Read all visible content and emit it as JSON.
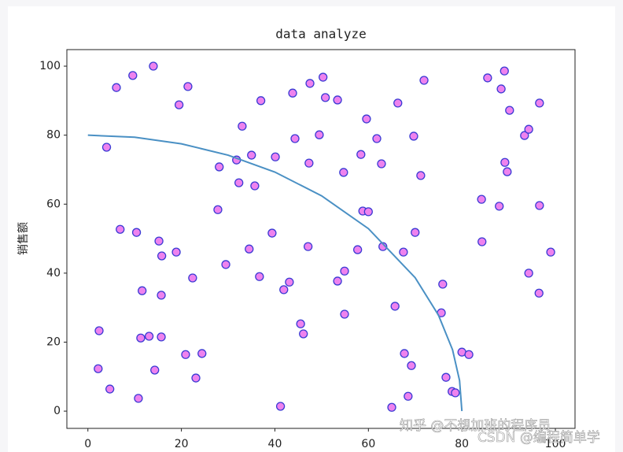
{
  "chart_data": {
    "type": "scatter",
    "title": "data analyze",
    "y_label": "销售额",
    "xlim": [
      -4.5,
      104.2
    ],
    "ylim": [
      -5,
      104.8
    ],
    "xticks": [
      0,
      20,
      40,
      60,
      80,
      100
    ],
    "yticks": [
      0,
      20,
      40,
      60,
      80,
      100
    ],
    "series": [
      {
        "type": "scatter",
        "color": "#ee82ee",
        "edgecolor": "#3b3bd4",
        "x": [
          2.2,
          2.4,
          4.0,
          4.7,
          6.1,
          6.9,
          9.6,
          10.4,
          10.8,
          11.3,
          11.6,
          13.1,
          14.0,
          14.3,
          15.2,
          15.7,
          15.8,
          15.7,
          18.9,
          19.5,
          20.9,
          21.4,
          22.4,
          23.1,
          24.4,
          27.8,
          28.1,
          29.5,
          31.8,
          32.3,
          33.0,
          34.5,
          35.0,
          35.7,
          36.7,
          37.0,
          39.4,
          40.1,
          41.2,
          41.9,
          43.1,
          43.8,
          44.3,
          45.5,
          46.1,
          47.3,
          47.1,
          47.5,
          49.5,
          50.3,
          50.8,
          53.4,
          53.4,
          54.7,
          54.9,
          54.9,
          57.7,
          58.4,
          58.8,
          59.6,
          60.0,
          61.8,
          62.8,
          63.1,
          65.0,
          65.7,
          66.3,
          67.5,
          67.7,
          68.5,
          69.2,
          69.7,
          70.0,
          71.2,
          71.9,
          75.6,
          75.9,
          76.6,
          77.9,
          78.6,
          80.0,
          81.5,
          84.2,
          84.3,
          85.5,
          88.0,
          88.4,
          89.1,
          89.2,
          89.7,
          90.2,
          93.4,
          94.3,
          94.3,
          96.5,
          96.6,
          96.6,
          99.0
        ],
        "values": [
          12.3,
          23.3,
          76.5,
          6.4,
          93.8,
          52.7,
          97.3,
          51.8,
          3.7,
          21.2,
          34.9,
          21.7,
          100,
          11.9,
          49.3,
          21.5,
          45.0,
          33.6,
          46.1,
          88.8,
          16.4,
          94.1,
          38.6,
          9.6,
          16.7,
          58.4,
          70.8,
          42.5,
          72.8,
          66.2,
          82.6,
          47.0,
          74.2,
          65.3,
          39.0,
          90.0,
          51.6,
          73.7,
          1.4,
          35.2,
          37.4,
          92.2,
          79.0,
          25.3,
          22.4,
          71.9,
          47.7,
          95.0,
          80.1,
          96.8,
          90.9,
          90.2,
          37.7,
          69.2,
          40.6,
          28.1,
          46.8,
          74.4,
          58.0,
          84.7,
          57.8,
          79.0,
          71.7,
          47.7,
          1.1,
          30.4,
          89.3,
          46.1,
          16.7,
          4.3,
          13.2,
          79.7,
          51.8,
          68.3,
          95.9,
          28.5,
          36.8,
          9.8,
          5.7,
          5.3,
          17.1,
          16.4,
          61.4,
          49.1,
          96.6,
          59.4,
          93.4,
          98.6,
          72.1,
          69.4,
          87.2,
          79.9,
          81.7,
          40.0,
          34.2,
          89.3,
          59.6,
          46.1
        ]
      },
      {
        "type": "line",
        "color": "#4a90c4",
        "x": [
          0,
          10,
          20,
          30,
          40,
          50,
          60,
          70,
          75,
          78,
          79.5,
          80
        ],
        "values": [
          80,
          79.4,
          77.5,
          74.2,
          69.3,
          62.4,
          52.9,
          38.7,
          27.8,
          17.8,
          8.9,
          0
        ]
      }
    ],
    "annotations": [
      "知乎 @不想加班的程序员",
      "CSDN @编程简单学"
    ]
  }
}
